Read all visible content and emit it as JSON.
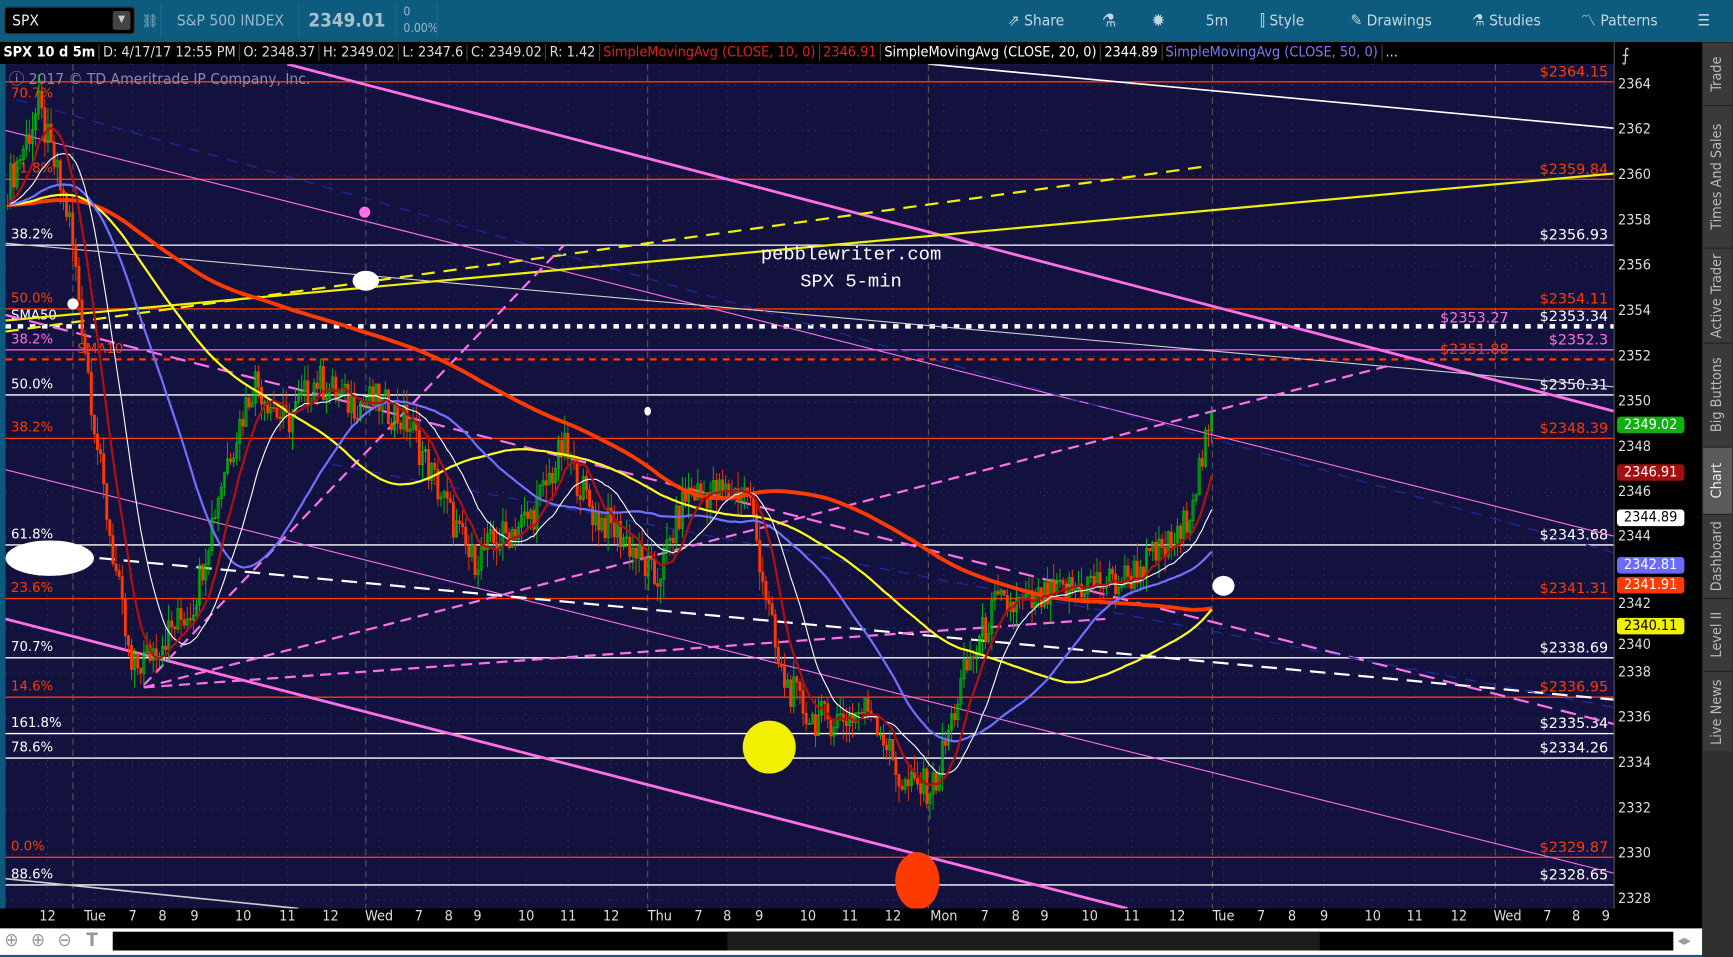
{
  "toolbar": {
    "symbol": "SPX",
    "description": "S&P 500 INDEX",
    "last": "2349.01",
    "change": "0",
    "change_pct": "0.00%",
    "buttons": [
      "Share",
      "5m",
      "Style",
      "Drawings",
      "Studies",
      "Patterns"
    ]
  },
  "info": {
    "title": "SPX 10 d 5m",
    "date": "D: 4/17/17 12:55 PM",
    "open": "O: 2348.37",
    "high": "H: 2349.02",
    "low": "L: 2347.6",
    "close": "C: 2349.02",
    "range": "R: 1.42",
    "sma10": "SimpleMovingAvg (CLOSE, 10, 0)",
    "sma10_val": "2346.91",
    "sma20": "SimpleMovingAvg (CLOSE, 20, 0)",
    "sma20_val": "2344.89",
    "sma50": "SimpleMovingAvg (CLOSE, 50, 0)",
    "more": "..."
  },
  "watermark": "2017 © TD Ameritrade IP Company, Inc.",
  "annotation": {
    "line1": "pebblewriter.com",
    "line2": "SPX 5-min"
  },
  "colors": {
    "up": "#00c800",
    "down": "#ff3a00",
    "sma10": "#b01010",
    "sma20": "#ffffff",
    "sma50": "#7070ff",
    "sma100": "#ffff20",
    "sma200": "#ff3a00",
    "fib_red": "#ff3a00",
    "fib_white": "#ffffff",
    "fib_pink": "#ff70e8",
    "plot_bg": "#13123f"
  },
  "chart_data": {
    "type": "candlestick",
    "ylim": [
      2327,
      2365
    ],
    "yticks": [
      2328,
      2330,
      2332,
      2334,
      2336,
      2338,
      2340,
      2342,
      2344,
      2346,
      2348,
      2350,
      2352,
      2354,
      2356,
      2358,
      2360,
      2362,
      2364
    ],
    "xticks": [
      "12",
      "Tue",
      "7",
      "8",
      "9",
      "10",
      "11",
      "12",
      "Wed",
      "7",
      "8",
      "9",
      "10",
      "11",
      "12",
      "Thu",
      "7",
      "8",
      "9",
      "10",
      "11",
      "12",
      "Mon",
      "7",
      "8",
      "9",
      "10",
      "11",
      "12",
      "Tue",
      "7",
      "8",
      "9",
      "10",
      "11",
      "12",
      "Wed",
      "7",
      "8",
      "9"
    ],
    "price_path": [
      2359.5,
      2363,
      2358,
      2347,
      2338,
      2339.5,
      2341,
      2347,
      2351,
      2349,
      2351,
      2350,
      2350,
      2349,
      2346,
      2343,
      2344,
      2345,
      2348,
      2345,
      2344,
      2342,
      2346,
      2346,
      2346,
      2338,
      2336,
      2336,
      2336.5,
      2333,
      2333,
      2338,
      2341,
      2341,
      2341.5,
      2342,
      2342,
      2343,
      2344,
      2349
    ]
  },
  "levels": [
    {
      "price": 2364.15,
      "label": "$2364.15",
      "pct": "70.7%",
      "color": "red"
    },
    {
      "price": 2359.84,
      "label": "$2359.84",
      "pct": "61.8%",
      "color": "red"
    },
    {
      "price": 2356.93,
      "label": "$2356.93",
      "pct": "38.2%",
      "color": "white"
    },
    {
      "price": 2354.11,
      "label": "$2354.11",
      "pct": "50.0%",
      "color": "red"
    },
    {
      "price": 2353.34,
      "label": "$2353.34",
      "pct": "SMA50",
      "color": "white",
      "style": "dotted"
    },
    {
      "price": 2353.27,
      "label": "$2353.27",
      "pct": "",
      "color": "pink",
      "style": "none"
    },
    {
      "price": 2352.3,
      "label": "$2352.3",
      "pct": "38.2%",
      "color": "pink"
    },
    {
      "price": 2351.88,
      "label": "$2351.88",
      "pct": "SMA10",
      "color": "red",
      "style": "dashed"
    },
    {
      "price": 2350.31,
      "label": "$2350.31",
      "pct": "50.0%",
      "color": "white"
    },
    {
      "price": 2348.39,
      "label": "$2348.39",
      "pct": "38.2%",
      "color": "red"
    },
    {
      "price": 2343.68,
      "label": "$2343.68",
      "pct": "61.8%",
      "color": "white"
    },
    {
      "price": 2341.31,
      "label": "$2341.31",
      "pct": "23.6%",
      "color": "red"
    },
    {
      "price": 2338.69,
      "label": "$2338.69",
      "pct": "70.7%",
      "color": "white"
    },
    {
      "price": 2336.95,
      "label": "$2336.95",
      "pct": "14.6%",
      "color": "red"
    },
    {
      "price": 2335.34,
      "label": "$2335.34",
      "pct": "161.8%",
      "color": "white"
    },
    {
      "price": 2334.26,
      "label": "$2334.26",
      "pct": "78.6%",
      "color": "white"
    },
    {
      "price": 2329.87,
      "label": "$2329.87",
      "pct": "0.0%",
      "color": "red"
    },
    {
      "price": 2328.65,
      "label": "$2328.65",
      "pct": "88.6%",
      "color": "white"
    }
  ],
  "badges": [
    {
      "value": "2349.02",
      "bg": "#10b010",
      "fg": "#fff"
    },
    {
      "value": "2346.91",
      "bg": "#a01010",
      "fg": "#fff"
    },
    {
      "value": "2344.89",
      "bg": "#ffffff",
      "fg": "#000"
    },
    {
      "value": "2342.81",
      "bg": "#6a6aff",
      "fg": "#fff"
    },
    {
      "value": "2341.91",
      "bg": "#ff3a00",
      "fg": "#fff"
    },
    {
      "value": "2340.11",
      "bg": "#f0f000",
      "fg": "#000"
    }
  ],
  "side_tabs": [
    "Trade",
    "Times And Sales",
    "Active Trader",
    "Big Buttons",
    "Chart",
    "Dashboard",
    "Level II",
    "Live News"
  ],
  "active_tab": "Chart"
}
